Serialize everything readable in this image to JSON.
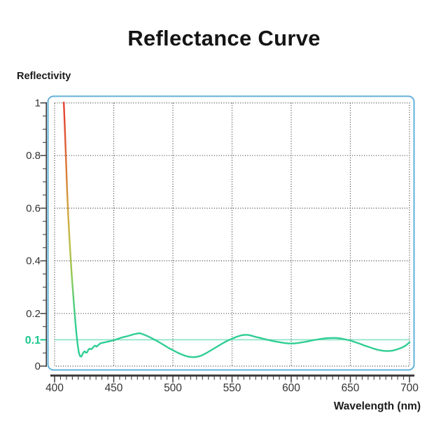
{
  "title": "Reflectance Curve",
  "y_axis_label": "Reflectivity",
  "x_axis_label": "Wavelength (nm)",
  "chart_data": {
    "type": "line",
    "title": "Reflectance Curve",
    "xlabel": "Wavelength (nm)",
    "ylabel": "Reflectivity",
    "xlim": [
      400,
      700
    ],
    "ylim": [
      0,
      1
    ],
    "grid": true,
    "legend": "none",
    "x_ticks": [
      {
        "v": 400,
        "label": "400"
      },
      {
        "v": 450,
        "label": "450"
      },
      {
        "v": 500,
        "label": "500"
      },
      {
        "v": 550,
        "label": "550"
      },
      {
        "v": 600,
        "label": "600"
      },
      {
        "v": 650,
        "label": "650"
      },
      {
        "v": 700,
        "label": "700"
      }
    ],
    "y_ticks": [
      {
        "v": 0,
        "label": "0"
      },
      {
        "v": 0.2,
        "label": "0.2"
      },
      {
        "v": 0.4,
        "label": "0.4"
      },
      {
        "v": 0.6,
        "label": "0.6"
      },
      {
        "v": 0.8,
        "label": "0.8"
      },
      {
        "v": 1,
        "label": "1"
      }
    ],
    "x_minor_step": 5,
    "y_minor_step": 0.05,
    "threshold": {
      "y": 0.1,
      "label": "0.1",
      "label_color": "#1bc78e",
      "line_color": "#8fe3c8"
    },
    "colors": {
      "frame": "#63b1da",
      "grid": "#3c3c3c",
      "axis": "#3f3f3f",
      "tick_label": "#333333",
      "curve_base": "#2fce94"
    },
    "series": [
      {
        "name": "reflectance",
        "gradient_stops": [
          {
            "o": 0,
            "c": "#e63e33"
          },
          {
            "o": 0.14,
            "c": "#e05434"
          },
          {
            "o": 0.3,
            "c": "#dc7b38"
          },
          {
            "o": 0.48,
            "c": "#d2a63f"
          },
          {
            "o": 0.62,
            "c": "#bcbc48"
          },
          {
            "o": 0.76,
            "c": "#94c953"
          },
          {
            "o": 0.88,
            "c": "#55cd7c"
          },
          {
            "o": 1,
            "c": "#2fce94"
          }
        ],
        "points": [
          [
            407.5,
            1.03
          ],
          [
            408.5,
            0.92
          ],
          [
            409.5,
            0.8
          ],
          [
            410.5,
            0.68
          ],
          [
            411.5,
            0.575
          ],
          [
            412.5,
            0.49
          ],
          [
            413.5,
            0.415
          ],
          [
            414.5,
            0.345
          ],
          [
            415.5,
            0.285
          ],
          [
            416.5,
            0.225
          ],
          [
            417.5,
            0.17
          ],
          [
            418.5,
            0.12
          ],
          [
            419.5,
            0.08
          ],
          [
            420.5,
            0.052
          ],
          [
            421.5,
            0.038
          ],
          [
            422.5,
            0.036
          ],
          [
            423.5,
            0.044
          ],
          [
            424.5,
            0.053
          ],
          [
            425.5,
            0.056
          ],
          [
            426.5,
            0.051
          ],
          [
            427.5,
            0.052
          ],
          [
            428.5,
            0.062
          ],
          [
            429.5,
            0.066
          ],
          [
            431,
            0.064
          ],
          [
            432.5,
            0.071
          ],
          [
            434,
            0.078
          ],
          [
            435.5,
            0.074
          ],
          [
            437,
            0.08
          ],
          [
            438.5,
            0.086
          ],
          [
            440,
            0.088
          ],
          [
            443,
            0.091
          ],
          [
            446,
            0.094
          ],
          [
            449,
            0.097
          ],
          [
            452,
            0.101
          ],
          [
            455,
            0.106
          ],
          [
            458,
            0.11
          ],
          [
            461,
            0.113
          ],
          [
            464,
            0.117
          ],
          [
            467,
            0.121
          ],
          [
            470,
            0.124
          ],
          [
            472,
            0.125
          ],
          [
            474,
            0.122
          ],
          [
            477,
            0.117
          ],
          [
            480,
            0.111
          ],
          [
            483,
            0.104
          ],
          [
            486,
            0.097
          ],
          [
            489,
            0.089
          ],
          [
            492,
            0.081
          ],
          [
            495,
            0.073
          ],
          [
            498,
            0.065
          ],
          [
            501,
            0.058
          ],
          [
            504,
            0.051
          ],
          [
            507,
            0.045
          ],
          [
            510,
            0.04
          ],
          [
            513,
            0.036
          ],
          [
            516,
            0.034
          ],
          [
            519,
            0.034
          ],
          [
            522,
            0.037
          ],
          [
            525,
            0.042
          ],
          [
            528,
            0.049
          ],
          [
            531,
            0.057
          ],
          [
            534,
            0.065
          ],
          [
            537,
            0.073
          ],
          [
            540,
            0.081
          ],
          [
            543,
            0.089
          ],
          [
            546,
            0.096
          ],
          [
            549,
            0.102
          ],
          [
            552,
            0.108
          ],
          [
            555,
            0.113
          ],
          [
            558,
            0.117
          ],
          [
            561,
            0.119
          ],
          [
            564,
            0.118
          ],
          [
            567,
            0.115
          ],
          [
            570,
            0.111
          ],
          [
            574,
            0.107
          ],
          [
            578,
            0.102
          ],
          [
            582,
            0.098
          ],
          [
            586,
            0.094
          ],
          [
            590,
            0.091
          ],
          [
            594,
            0.088
          ],
          [
            598,
            0.086
          ],
          [
            602,
            0.086
          ],
          [
            606,
            0.088
          ],
          [
            610,
            0.091
          ],
          [
            614,
            0.094
          ],
          [
            618,
            0.098
          ],
          [
            622,
            0.101
          ],
          [
            626,
            0.104
          ],
          [
            630,
            0.106
          ],
          [
            634,
            0.107
          ],
          [
            638,
            0.107
          ],
          [
            642,
            0.105
          ],
          [
            646,
            0.101
          ],
          [
            650,
            0.097
          ],
          [
            654,
            0.091
          ],
          [
            658,
            0.085
          ],
          [
            662,
            0.078
          ],
          [
            666,
            0.072
          ],
          [
            670,
            0.066
          ],
          [
            674,
            0.061
          ],
          [
            678,
            0.058
          ],
          [
            682,
            0.057
          ],
          [
            686,
            0.059
          ],
          [
            690,
            0.064
          ],
          [
            694,
            0.071
          ],
          [
            697,
            0.079
          ],
          [
            700,
            0.09
          ]
        ]
      }
    ]
  }
}
